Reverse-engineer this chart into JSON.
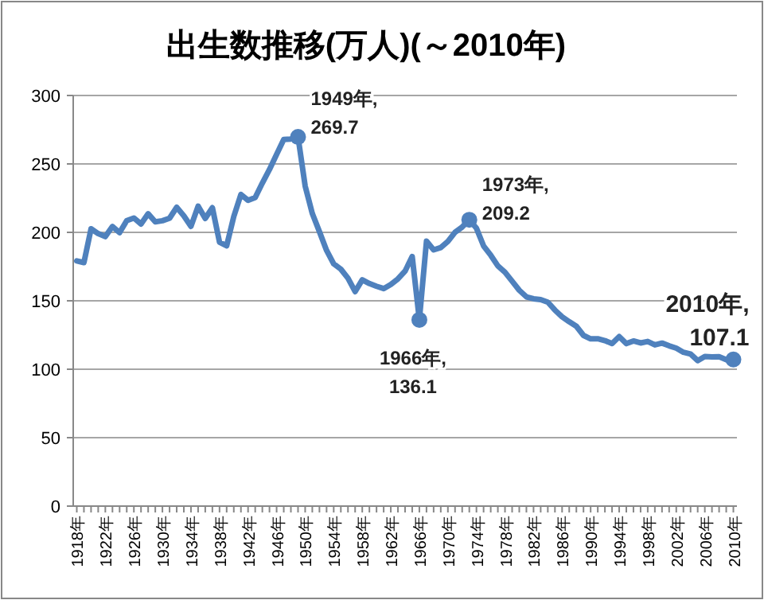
{
  "chart_data": {
    "type": "line",
    "title": "出生数推移(万人)(～2010年)",
    "x": [
      1918,
      1919,
      1920,
      1921,
      1922,
      1923,
      1924,
      1925,
      1926,
      1927,
      1928,
      1929,
      1930,
      1931,
      1932,
      1933,
      1934,
      1935,
      1936,
      1937,
      1938,
      1939,
      1940,
      1941,
      1942,
      1943,
      1944,
      1945,
      1946,
      1947,
      1948,
      1949,
      1950,
      1951,
      1952,
      1953,
      1954,
      1955,
      1956,
      1957,
      1958,
      1959,
      1960,
      1961,
      1962,
      1963,
      1964,
      1965,
      1966,
      1967,
      1968,
      1969,
      1970,
      1971,
      1972,
      1973,
      1974,
      1975,
      1976,
      1977,
      1978,
      1979,
      1980,
      1981,
      1982,
      1983,
      1984,
      1985,
      1986,
      1987,
      1988,
      1989,
      1990,
      1991,
      1992,
      1993,
      1994,
      1995,
      1996,
      1997,
      1998,
      1999,
      2000,
      2001,
      2002,
      2003,
      2004,
      2005,
      2006,
      2007,
      2008,
      2009,
      2010
    ],
    "series": [
      {
        "color": "#4f81bd",
        "marker": "none",
        "values": [
          179.2,
          177.9,
          202.6,
          199.1,
          196.9,
          204.3,
          199.8,
          208.6,
          210.5,
          206.1,
          213.6,
          207.7,
          208.5,
          210.3,
          218.3,
          212.1,
          204.4,
          219.1,
          210.2,
          218.0,
          192.8,
          190.2,
          211.6,
          227.7,
          223.4,
          225.4,
          236,
          246,
          257,
          267.9,
          268.2,
          269.7,
          233.8,
          213.8,
          200.5,
          186.8,
          177.0,
          173.1,
          166.5,
          156.7,
          165.3,
          162.6,
          160.6,
          158.9,
          161.9,
          166.0,
          171.7,
          182.4,
          136.1,
          193.6,
          187.2,
          188.9,
          193.4,
          200.1,
          203.9,
          209.2,
          203.0,
          190.1,
          183.3,
          175.5,
          170.9,
          164.3,
          157.7,
          152.9,
          151.5,
          150.9,
          149.0,
          143.2,
          138.3,
          134.7,
          131.4,
          124.7,
          122.2,
          122.3,
          120.9,
          118.8,
          123.8,
          118.7,
          120.7,
          119.2,
          120.3,
          117.8,
          119.1,
          117.1,
          115.4,
          112.4,
          111.1,
          106.3,
          109.3,
          109.0,
          109.1,
          107.0,
          107.1
        ]
      },
      {
        "color": "#4f81bd",
        "type": "scatter",
        "marker": "circle",
        "x": [
          1949,
          1966,
          1973,
          2010
        ],
        "values": [
          269.7,
          136.1,
          209.2,
          107.1
        ]
      }
    ],
    "annotations": [
      {
        "text": "1949年,\n269.7",
        "x": 1949,
        "y": 269.7
      },
      {
        "text": "1966年,\n136.1",
        "x": 1966,
        "y": 136.1
      },
      {
        "text": "1973年,\n209.2",
        "x": 1973,
        "y": 209.2
      },
      {
        "text": "2010年,\n107.1",
        "x": 2010,
        "y": 107.1
      }
    ],
    "xlim": [
      1917.5,
      2010.5
    ],
    "xticks": [
      {
        "value": 1918,
        "label": "1918年"
      },
      {
        "value": 1919,
        "label": null
      },
      {
        "value": 1920,
        "label": null
      },
      {
        "value": 1921,
        "label": null
      },
      {
        "value": 1922,
        "label": "1922年"
      },
      {
        "value": 1923,
        "label": null
      },
      {
        "value": 1924,
        "label": null
      },
      {
        "value": 1925,
        "label": null
      },
      {
        "value": 1926,
        "label": "1926年"
      },
      {
        "value": 1927,
        "label": null
      },
      {
        "value": 1928,
        "label": null
      },
      {
        "value": 1929,
        "label": null
      },
      {
        "value": 1930,
        "label": "1930年"
      },
      {
        "value": 1931,
        "label": null
      },
      {
        "value": 1932,
        "label": null
      },
      {
        "value": 1933,
        "label": null
      },
      {
        "value": 1934,
        "label": "1934年"
      },
      {
        "value": 1935,
        "label": null
      },
      {
        "value": 1936,
        "label": null
      },
      {
        "value": 1937,
        "label": null
      },
      {
        "value": 1938,
        "label": "1938年"
      },
      {
        "value": 1939,
        "label": null
      },
      {
        "value": 1940,
        "label": null
      },
      {
        "value": 1941,
        "label": null
      },
      {
        "value": 1942,
        "label": "1942年"
      },
      {
        "value": 1943,
        "label": null
      },
      {
        "value": 1944,
        "label": null
      },
      {
        "value": 1945,
        "label": null
      },
      {
        "value": 1946,
        "label": "1946年"
      },
      {
        "value": 1947,
        "label": null
      },
      {
        "value": 1948,
        "label": null
      },
      {
        "value": 1949,
        "label": null
      },
      {
        "value": 1950,
        "label": "1950年"
      },
      {
        "value": 1951,
        "label": null
      },
      {
        "value": 1952,
        "label": null
      },
      {
        "value": 1953,
        "label": null
      },
      {
        "value": 1954,
        "label": "1954年"
      },
      {
        "value": 1955,
        "label": null
      },
      {
        "value": 1956,
        "label": null
      },
      {
        "value": 1957,
        "label": null
      },
      {
        "value": 1958,
        "label": "1958年"
      },
      {
        "value": 1959,
        "label": null
      },
      {
        "value": 1960,
        "label": null
      },
      {
        "value": 1961,
        "label": null
      },
      {
        "value": 1962,
        "label": "1962年"
      },
      {
        "value": 1963,
        "label": null
      },
      {
        "value": 1964,
        "label": null
      },
      {
        "value": 1965,
        "label": null
      },
      {
        "value": 1966,
        "label": "1966年"
      },
      {
        "value": 1967,
        "label": null
      },
      {
        "value": 1968,
        "label": null
      },
      {
        "value": 1969,
        "label": null
      },
      {
        "value": 1970,
        "label": "1970年"
      },
      {
        "value": 1971,
        "label": null
      },
      {
        "value": 1972,
        "label": null
      },
      {
        "value": 1973,
        "label": null
      },
      {
        "value": 1974,
        "label": "1974年"
      },
      {
        "value": 1975,
        "label": null
      },
      {
        "value": 1976,
        "label": null
      },
      {
        "value": 1977,
        "label": null
      },
      {
        "value": 1978,
        "label": "1978年"
      },
      {
        "value": 1979,
        "label": null
      },
      {
        "value": 1980,
        "label": null
      },
      {
        "value": 1981,
        "label": null
      },
      {
        "value": 1982,
        "label": "1982年"
      },
      {
        "value": 1983,
        "label": null
      },
      {
        "value": 1984,
        "label": null
      },
      {
        "value": 1985,
        "label": null
      },
      {
        "value": 1986,
        "label": "1986年"
      },
      {
        "value": 1987,
        "label": null
      },
      {
        "value": 1988,
        "label": null
      },
      {
        "value": 1989,
        "label": null
      },
      {
        "value": 1990,
        "label": "1990年"
      },
      {
        "value": 1991,
        "label": null
      },
      {
        "value": 1992,
        "label": null
      },
      {
        "value": 1993,
        "label": null
      },
      {
        "value": 1994,
        "label": "1994年"
      },
      {
        "value": 1995,
        "label": null
      },
      {
        "value": 1996,
        "label": null
      },
      {
        "value": 1997,
        "label": null
      },
      {
        "value": 1998,
        "label": "1998年"
      },
      {
        "value": 1999,
        "label": null
      },
      {
        "value": 2000,
        "label": null
      },
      {
        "value": 2001,
        "label": null
      },
      {
        "value": 2002,
        "label": "2002年"
      },
      {
        "value": 2003,
        "label": null
      },
      {
        "value": 2004,
        "label": null
      },
      {
        "value": 2005,
        "label": null
      },
      {
        "value": 2006,
        "label": "2006年"
      },
      {
        "value": 2007,
        "label": null
      },
      {
        "value": 2008,
        "label": null
      },
      {
        "value": 2009,
        "label": null
      },
      {
        "value": 2010,
        "label": "2010年"
      }
    ],
    "ylim": [
      0,
      300
    ],
    "yticks": [
      0,
      50,
      100,
      150,
      200,
      250,
      300
    ],
    "grid": "y"
  }
}
